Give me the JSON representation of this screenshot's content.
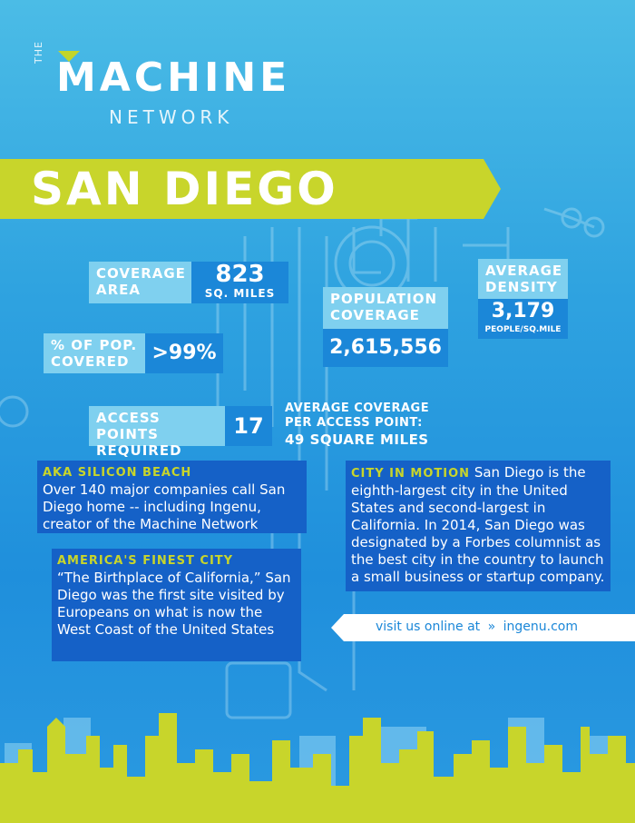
{
  "logo": {
    "the": "THE",
    "machine": "MACHINE",
    "network": "NETWORK"
  },
  "title": "SAN DIEGO",
  "coverage_area": {
    "label_line1": "COVERAGE",
    "label_line2": "AREA",
    "value": "823",
    "unit": "SQ. MILES"
  },
  "average_density": {
    "label_line1": "AVERAGE",
    "label_line2": "DENSITY",
    "value": "3,179",
    "unit": "PEOPLE/SQ.MILE"
  },
  "population_coverage": {
    "label_line1": "POPULATION",
    "label_line2": "COVERAGE",
    "value": "2,615,556"
  },
  "pct_covered": {
    "label_line1": "% OF POP.",
    "label_line2": "COVERED",
    "value": ">99%"
  },
  "access_points": {
    "label_line1": "ACCESS POINTS",
    "label_line2": "REQUIRED",
    "value": "17"
  },
  "avg_coverage": {
    "line1": "AVERAGE COVERAGE",
    "line2": "PER ACCESS POINT:",
    "line3": "49 SQUARE MILES"
  },
  "silicon_beach": {
    "heading": "AKA SILICON BEACH",
    "body": "Over 140 major companies call San Diego home -- including Ingenu, creator of the Machine Network"
  },
  "finest_city": {
    "heading": "AMERICA'S FINEST CITY",
    "body": "“The Birthplace of California,” San Diego was the first site visited by Europeans on what is now the West Coast of the United States"
  },
  "city_in_motion": {
    "heading": "CITY IN MOTION",
    "body": "San Diego is the eighth-largest city in the United States and second-largest in California. In 2014, San Diego was designated by a Forbes columnist as the best city in the country to launch a small business or startup company."
  },
  "visit": {
    "text": "visit us online at",
    "arrow": "»",
    "url": "ingenu.com"
  },
  "colors": {
    "lime": "#c8d52b",
    "sky": "#2fa3e0",
    "label_bg": "#7fd0ef",
    "value_bg": "#1b87d8",
    "card_bg": "#1561c7"
  }
}
